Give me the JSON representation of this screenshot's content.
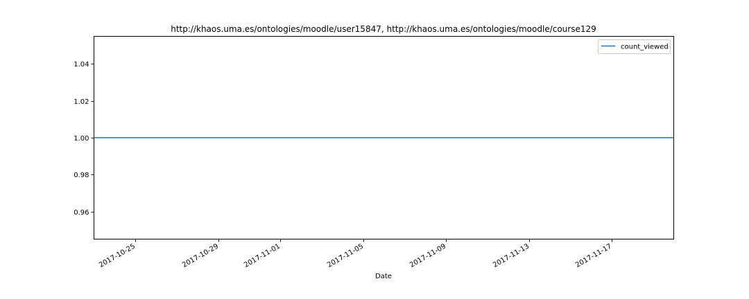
{
  "chart_data": {
    "type": "line",
    "title": "http://khaos.uma.es/ontologies/moodle/user15847, http://khaos.uma.es/ontologies/moodle/course129",
    "xlabel": "Date",
    "ylabel": "",
    "x_type": "date",
    "xlim": [
      "2017-10-23",
      "2017-11-20"
    ],
    "ylim": [
      0.945,
      1.055
    ],
    "x_ticks": [
      "2017-10-25",
      "2017-10-29",
      "2017-11-01",
      "2017-11-05",
      "2017-11-09",
      "2017-11-13",
      "2017-11-17"
    ],
    "y_ticks": [
      0.96,
      0.98,
      1.0,
      1.02,
      1.04
    ],
    "y_tick_labels": [
      "0.96",
      "0.98",
      "1.00",
      "1.02",
      "1.04"
    ],
    "grid": false,
    "legend_position": "top-right",
    "series": [
      {
        "name": "count_viewed",
        "color": "#1f77b4",
        "x": [
          "2017-10-23",
          "2017-11-20"
        ],
        "y": [
          1.0,
          1.0
        ]
      }
    ]
  }
}
